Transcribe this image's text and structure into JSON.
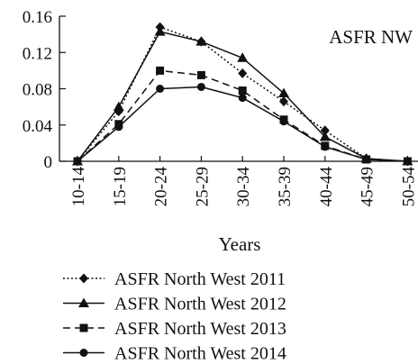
{
  "chart_data": {
    "type": "line",
    "annotation": "ASFR NW",
    "xlabel": "Years",
    "ylabel": "",
    "categories": [
      "10-14",
      "15-19",
      "20-24",
      "25-29",
      "30-34",
      "35-39",
      "40-44",
      "45-49",
      "50-54"
    ],
    "ylim": [
      0,
      0.16
    ],
    "yticks": [
      0,
      0.04,
      0.08,
      0.12,
      0.16
    ],
    "ytick_labels": [
      "0",
      "0.04",
      "0.08",
      "0.12",
      "0.16"
    ],
    "grid": false,
    "legend_position": "bottom",
    "series": [
      {
        "name": "ASFR North West 2011",
        "marker": "diamond",
        "line": "dotted",
        "values": [
          0.0,
          0.055,
          0.148,
          0.132,
          0.097,
          0.066,
          0.034,
          0.003,
          0.0
        ]
      },
      {
        "name": "ASFR North West 2012",
        "marker": "triangle",
        "line": "solid",
        "values": [
          0.0,
          0.06,
          0.143,
          0.132,
          0.114,
          0.075,
          0.027,
          0.003,
          0.0
        ]
      },
      {
        "name": "ASFR North West 2013",
        "marker": "square",
        "line": "dashed",
        "values": [
          0.0,
          0.041,
          0.1,
          0.095,
          0.078,
          0.046,
          0.017,
          0.002,
          0.0
        ]
      },
      {
        "name": "ASFR North West 2014",
        "marker": "circle",
        "line": "solid",
        "values": [
          0.0,
          0.038,
          0.08,
          0.082,
          0.07,
          0.044,
          0.016,
          0.002,
          0.0
        ]
      }
    ]
  }
}
